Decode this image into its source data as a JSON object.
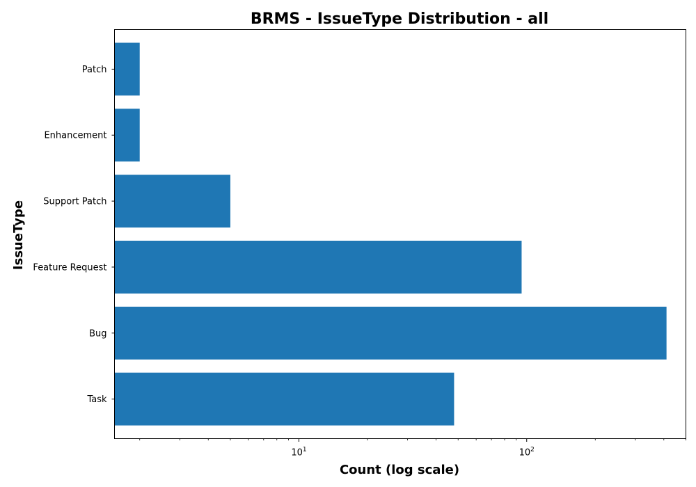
{
  "chart_data": {
    "type": "bar",
    "orientation": "horizontal",
    "title": "BRMS - IssueType Distribution - all",
    "xlabel": "Count (log scale)",
    "ylabel": "IssueType",
    "xscale": "log",
    "xlim": [
      1.55,
      500
    ],
    "categories": [
      "Task",
      "Bug",
      "Feature Request",
      "Support Patch",
      "Enhancement",
      "Patch"
    ],
    "values": [
      48,
      411,
      95,
      5,
      2,
      2
    ],
    "x_ticks": [
      {
        "value": 10,
        "base": "10",
        "exponent": "1"
      },
      {
        "value": 100,
        "base": "10",
        "exponent": "2"
      }
    ],
    "bar_color": "#1f77b4",
    "grid": false,
    "legend": "none"
  }
}
